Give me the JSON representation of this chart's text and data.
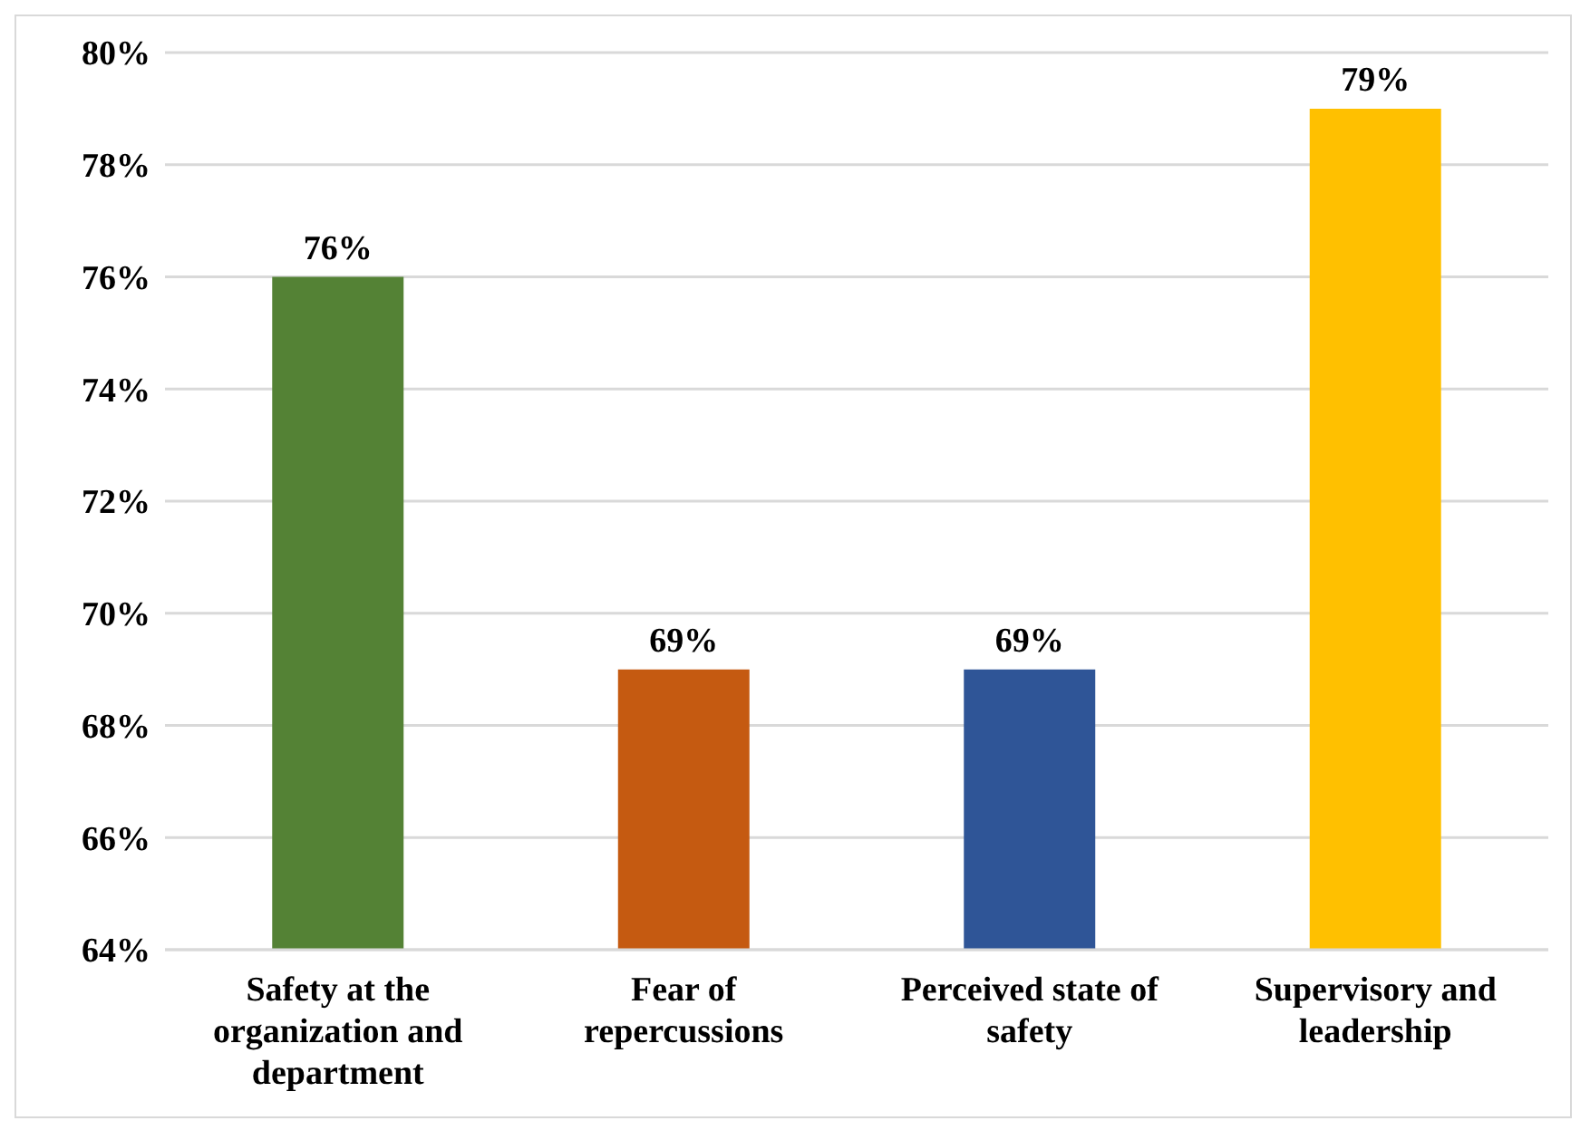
{
  "chart_data": {
    "type": "bar",
    "categories": [
      "Safety at the organization and department",
      "Fear of repercussions",
      "Perceived state of safety",
      "Supervisory and leadership"
    ],
    "values": [
      76,
      69,
      69,
      79
    ],
    "colors": [
      "#548235",
      "#c55a11",
      "#2f5597",
      "#ffc000"
    ],
    "value_labels": [
      "76%",
      "69%",
      "69%",
      "79%"
    ],
    "ylim": [
      64,
      80
    ],
    "yticks": [
      {
        "value": 64,
        "label": "64%"
      },
      {
        "value": 66,
        "label": "66%"
      },
      {
        "value": 68,
        "label": "68%"
      },
      {
        "value": 70,
        "label": "70%"
      },
      {
        "value": 72,
        "label": "72%"
      },
      {
        "value": 74,
        "label": "74%"
      },
      {
        "value": 76,
        "label": "76%"
      },
      {
        "value": 78,
        "label": "78%"
      },
      {
        "value": 80,
        "label": "80%"
      }
    ],
    "grid": "y",
    "legend": false
  }
}
